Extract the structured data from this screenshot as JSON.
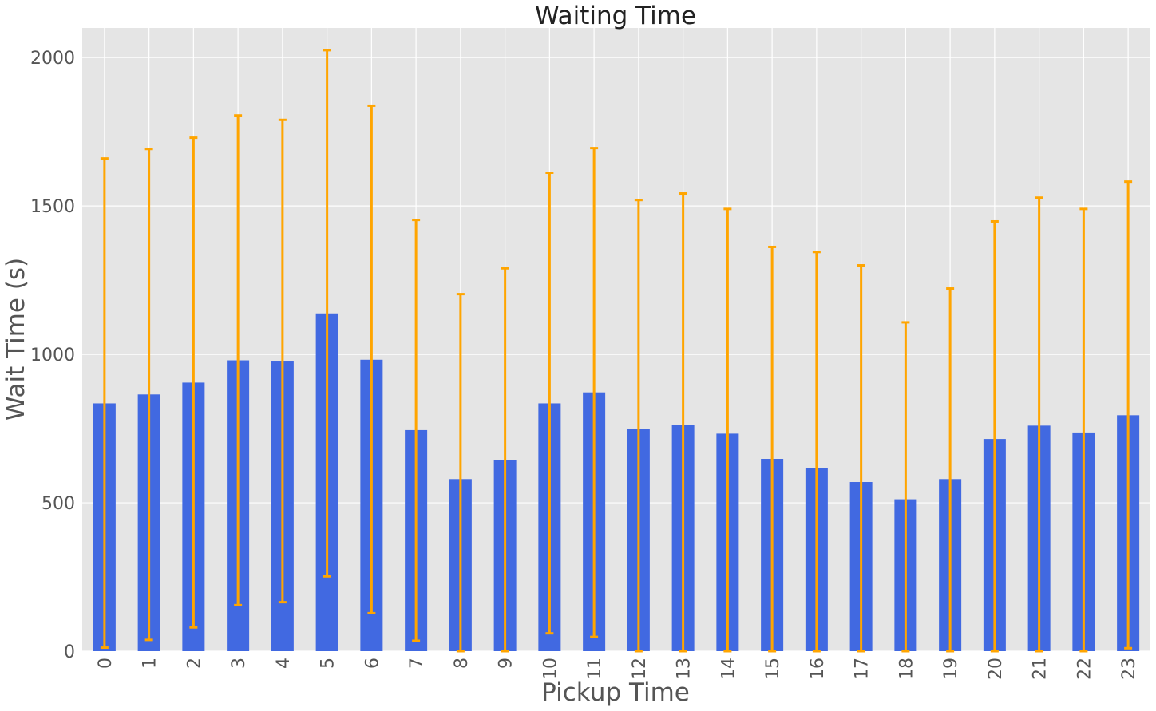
{
  "chart_data": {
    "type": "bar",
    "title": "Waiting Time",
    "xlabel": "Pickup Time",
    "ylabel": "Wait Time (s)",
    "ylim": [
      0,
      2100
    ],
    "yticks": [
      "0",
      "500",
      "1000",
      "1500",
      "2000"
    ],
    "grid": true,
    "legend": "none",
    "categories": [
      "0",
      "1",
      "2",
      "3",
      "4",
      "5",
      "6",
      "7",
      "8",
      "9",
      "10",
      "11",
      "12",
      "13",
      "14",
      "15",
      "16",
      "17",
      "18",
      "19",
      "20",
      "21",
      "22",
      "23"
    ],
    "values": [
      835,
      865,
      905,
      980,
      976,
      1138,
      982,
      745,
      580,
      645,
      835,
      872,
      750,
      763,
      733,
      648,
      618,
      570,
      512,
      580,
      715,
      760,
      737,
      795
    ],
    "error_low": [
      12,
      38,
      80,
      155,
      165,
      252,
      128,
      35,
      0,
      0,
      60,
      48,
      0,
      0,
      0,
      0,
      0,
      0,
      0,
      0,
      0,
      0,
      0,
      10
    ],
    "error_high": [
      1660,
      1692,
      1730,
      1805,
      1790,
      2025,
      1838,
      1453,
      1203,
      1290,
      1612,
      1695,
      1520,
      1542,
      1490,
      1362,
      1345,
      1300,
      1108,
      1222,
      1448,
      1528,
      1490,
      1582
    ],
    "colors": {
      "bar": "#4169e1",
      "error": "#ffa500",
      "plot_background": "#e5e5e5",
      "grid": "#ffffff"
    }
  }
}
